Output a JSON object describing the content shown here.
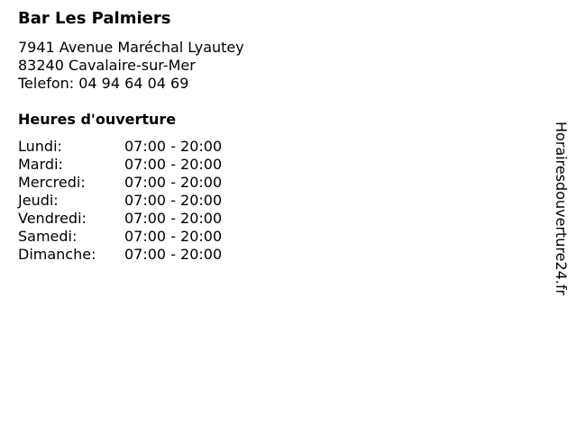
{
  "business": {
    "name": "Bar Les Palmiers",
    "street": "7941 Avenue Maréchal Lyautey",
    "city": "83240 Cavalaire-sur-Mer",
    "phone": "Telefon: 04 94 64 04 69"
  },
  "hours": {
    "title": "Heures d'ouverture",
    "days": [
      {
        "day": "Lundi:",
        "time": "07:00 - 20:00"
      },
      {
        "day": "Mardi:",
        "time": "07:00 - 20:00"
      },
      {
        "day": "Mercredi:",
        "time": "07:00 - 20:00"
      },
      {
        "day": "Jeudi:",
        "time": "07:00 - 20:00"
      },
      {
        "day": "Vendredi:",
        "time": "07:00 - 20:00"
      },
      {
        "day": "Samedi:",
        "time": "07:00 - 20:00"
      },
      {
        "day": "Dimanche:",
        "time": "07:00 - 20:00"
      }
    ]
  },
  "watermark": "Horairesdouverture24.fr"
}
